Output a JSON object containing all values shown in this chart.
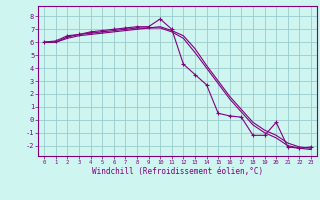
{
  "xlabel": "Windchill (Refroidissement éolien,°C)",
  "bg_color": "#cef5f0",
  "line_color": "#800080",
  "grid_color": "#99cccc",
  "x_ticks": [
    0,
    1,
    2,
    3,
    4,
    5,
    6,
    7,
    8,
    9,
    10,
    11,
    12,
    13,
    14,
    15,
    16,
    17,
    18,
    19,
    20,
    21,
    22,
    23
  ],
  "y_ticks": [
    -2,
    -1,
    0,
    1,
    2,
    3,
    4,
    5,
    6,
    7,
    8
  ],
  "xlim": [
    -0.5,
    23.5
  ],
  "ylim": [
    -2.8,
    8.8
  ],
  "series1_x": [
    0,
    1,
    2,
    3,
    4,
    5,
    6,
    7,
    8,
    9,
    10,
    11,
    12,
    13,
    14,
    15,
    16,
    17,
    18,
    19,
    20,
    21,
    22,
    23
  ],
  "series1_y": [
    6.0,
    6.1,
    6.5,
    6.6,
    6.8,
    6.9,
    7.0,
    7.1,
    7.2,
    7.2,
    7.8,
    7.0,
    4.3,
    3.5,
    2.7,
    0.5,
    0.3,
    0.2,
    -1.2,
    -1.2,
    -0.2,
    -2.1,
    -2.2,
    -2.1
  ],
  "series2_x": [
    0,
    1,
    2,
    3,
    4,
    5,
    6,
    7,
    8,
    9,
    10,
    11,
    12,
    13,
    14,
    15,
    16,
    17,
    18,
    19,
    20,
    21,
    22,
    23
  ],
  "series2_y": [
    6.0,
    6.0,
    6.4,
    6.6,
    6.7,
    6.8,
    6.9,
    7.0,
    7.1,
    7.1,
    7.2,
    6.9,
    6.5,
    5.5,
    4.2,
    3.0,
    1.8,
    0.8,
    -0.2,
    -0.8,
    -1.2,
    -1.8,
    -2.1,
    -2.2
  ],
  "series3_x": [
    0,
    1,
    2,
    3,
    4,
    5,
    6,
    7,
    8,
    9,
    10,
    11,
    12,
    13,
    14,
    15,
    16,
    17,
    18,
    19,
    20,
    21,
    22,
    23
  ],
  "series3_y": [
    6.0,
    6.0,
    6.3,
    6.5,
    6.6,
    6.7,
    6.8,
    6.9,
    7.0,
    7.1,
    7.1,
    6.8,
    6.3,
    5.2,
    4.0,
    2.8,
    1.6,
    0.6,
    -0.4,
    -1.0,
    -1.4,
    -2.0,
    -2.2,
    -2.3
  ]
}
